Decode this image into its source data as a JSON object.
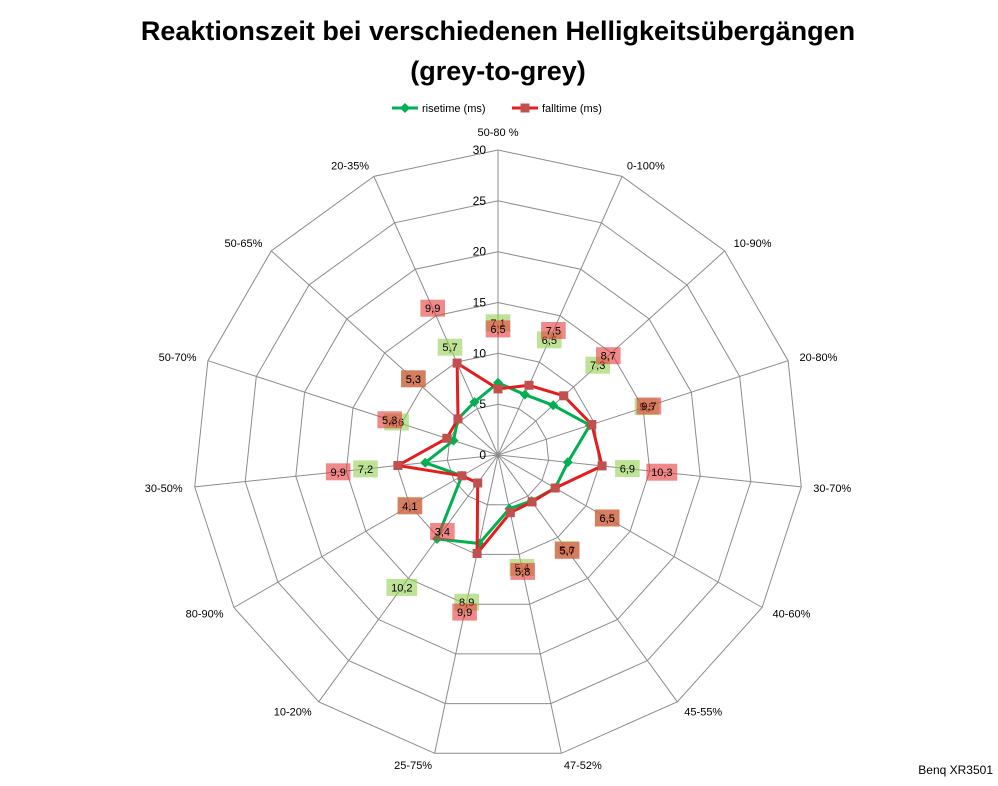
{
  "chart_data": {
    "type": "radar",
    "title_lines": [
      "Reaktionszeit bei verschiedenen Helligkeitsübergängen",
      "(grey-to-grey)"
    ],
    "categories": [
      "50-80 %",
      "0-100%",
      "10-90%",
      "20-80%",
      "30-70%",
      "40-60%",
      "45-55%",
      "47-52%",
      "25-75%",
      "10-20%",
      "80-90%",
      "30-50%",
      "50-70%",
      "50-65%",
      "20-35%"
    ],
    "series": [
      {
        "name": "risetime (ms)",
        "values": [
          7.1,
          6.5,
          7.3,
          9.5,
          6.9,
          6.5,
          5.6,
          5.4,
          8.9,
          10.2,
          4.1,
          7.2,
          4.6,
          5.3,
          5.7
        ],
        "color": "#00b050",
        "marker": "diamond",
        "marker_color": "#00b050",
        "label_fill": "#92d050"
      },
      {
        "name": "falltime (ms)",
        "values": [
          6.5,
          7.5,
          8.7,
          9.7,
          10.3,
          6.5,
          5.7,
          5.8,
          9.9,
          3.4,
          4.1,
          9.9,
          5.3,
          5.3,
          9.9
        ],
        "color": "#e41e1e",
        "marker": "square",
        "marker_color": "#c0504d",
        "label_fill": "#e63c3c"
      }
    ],
    "r_range": [
      0,
      30
    ],
    "r_ticks": [
      0,
      5,
      10,
      15,
      20,
      25,
      30
    ],
    "grid": true,
    "grid_color": "#8c8c8c",
    "legend_position": "top",
    "data_labels": true,
    "annotation": "Benq XR3501"
  }
}
